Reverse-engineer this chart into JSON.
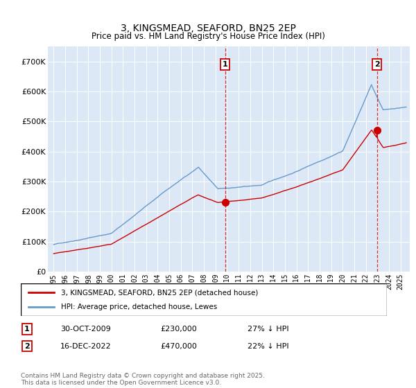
{
  "title": "3, KINGSMEAD, SEAFORD, BN25 2EP",
  "subtitle": "Price paid vs. HM Land Registry's House Price Index (HPI)",
  "sale1_date": "30-OCT-2009",
  "sale1_price": 230000,
  "sale1_label": "27% ↓ HPI",
  "sale2_date": "16-DEC-2022",
  "sale2_price": 470000,
  "sale2_label": "22% ↓ HPI",
  "legend_line1": "3, KINGSMEAD, SEAFORD, BN25 2EP (detached house)",
  "legend_line2": "HPI: Average price, detached house, Lewes",
  "footnote": "Contains HM Land Registry data © Crown copyright and database right 2025.\nThis data is licensed under the Open Government Licence v3.0.",
  "line_color_red": "#cc0000",
  "line_color_blue": "#6699cc",
  "bg_color": "#dce8f5",
  "ylim": [
    0,
    750000
  ],
  "sale1_x": 2009.83,
  "sale2_x": 2022.96
}
